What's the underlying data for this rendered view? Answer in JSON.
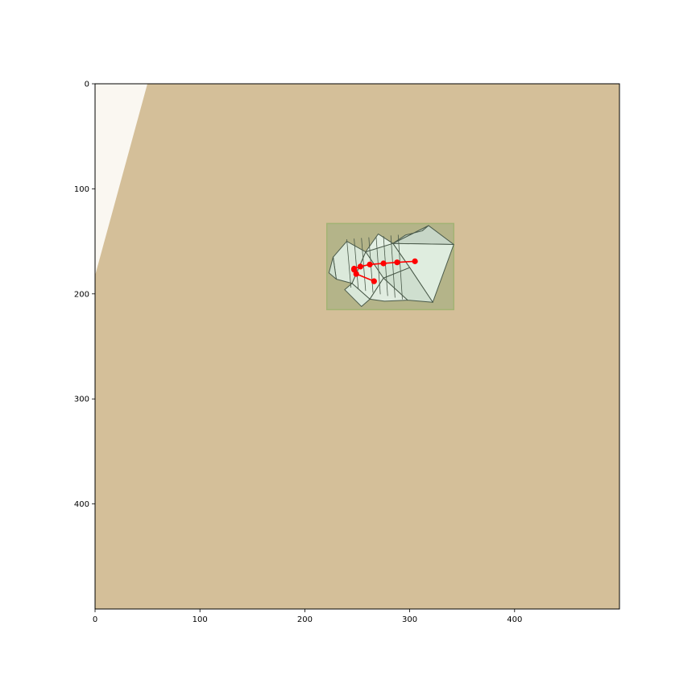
{
  "figure": {
    "x_axis": {
      "range": [
        0,
        500
      ],
      "ticks": [
        0,
        100,
        200,
        300,
        400
      ]
    },
    "y_axis": {
      "range": [
        0,
        500
      ],
      "inverted": true,
      "ticks": [
        0,
        100,
        200,
        300,
        400
      ]
    }
  },
  "image_content": {
    "background_color": "#d4bf99",
    "paper_corner_color": "#faf7f1",
    "subject": "paper-origami-model",
    "subject_color": "#dcebdc",
    "subject_outline_color": "#4a5a4a"
  },
  "bounding_box": {
    "x_range": [
      221,
      342
    ],
    "y_range": [
      133,
      215
    ],
    "fill_color": "#b4b489",
    "stroke_color": "#a3b374"
  },
  "keypoints": {
    "color": "#ff0000",
    "chain_upper": [
      [
        305,
        169
      ],
      [
        288,
        170
      ],
      [
        275,
        171
      ],
      [
        262,
        172
      ],
      [
        253,
        174
      ],
      [
        247,
        176
      ]
    ],
    "chain_lower": [
      [
        247,
        177
      ],
      [
        249,
        181
      ],
      [
        266,
        188
      ]
    ]
  }
}
